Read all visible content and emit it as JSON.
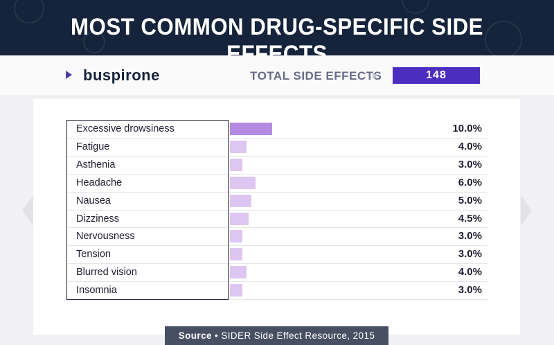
{
  "header": {
    "title": "MOST COMMON DRUG-SPECIFIC SIDE EFFECTS"
  },
  "drug": {
    "name": "buspirone",
    "arrow_icon": "triangle-right-icon"
  },
  "total": {
    "label": "TOTAL SIDE EFFECTS",
    "value": "148"
  },
  "colors": {
    "header_bg": "#15243b",
    "accent": "#4b2ec0",
    "bar_max": "#b48be0",
    "bar_light": "#ddc6f2"
  },
  "chart_data": {
    "type": "bar",
    "orientation": "horizontal",
    "categories": [
      "Excessive drowsiness",
      "Fatigue",
      "Asthenia",
      "Headache",
      "Nausea",
      "Dizziness",
      "Nervousness",
      "Tension",
      "Blurred vision",
      "Insomnia"
    ],
    "values": [
      10.0,
      4.0,
      3.0,
      6.0,
      5.0,
      4.5,
      3.0,
      3.0,
      4.0,
      3.0
    ],
    "value_labels": [
      "10.0%",
      "4.0%",
      "3.0%",
      "6.0%",
      "5.0%",
      "4.5%",
      "3.0%",
      "3.0%",
      "4.0%",
      "3.0%"
    ],
    "unit": "%",
    "xlim": [
      0,
      60
    ],
    "grid": false,
    "legend": false
  },
  "source": {
    "label": "Source",
    "separator": "•",
    "text": "SIDER Side Effect Resource, 2015"
  },
  "nav": {
    "prev_icon": "chevron-left-icon",
    "next_icon": "chevron-right-icon"
  }
}
